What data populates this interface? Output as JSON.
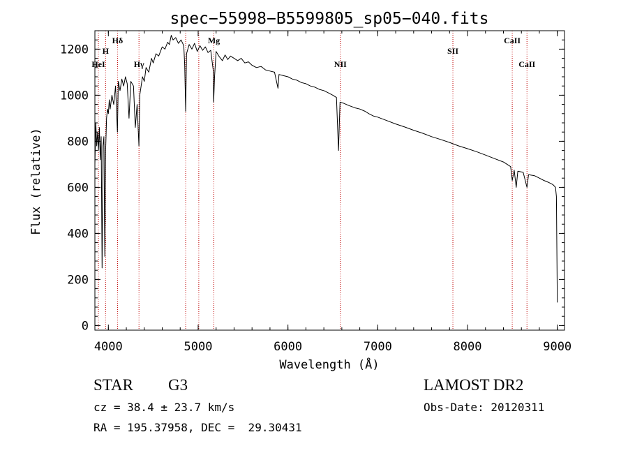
{
  "chart_data": {
    "type": "line",
    "title": "spec−55998−B5599805_sp05−040.fits",
    "xlabel": "Wavelength (Å)",
    "ylabel": "Flux (relative)",
    "xlim": [
      3850,
      9080
    ],
    "ylim": [
      -20,
      1280
    ],
    "xticks": [
      4000,
      5000,
      6000,
      7000,
      8000,
      9000
    ],
    "yticks": [
      0,
      200,
      400,
      600,
      800,
      1000,
      1200
    ],
    "series": [
      {
        "points": [
          [
            3850,
            700
          ],
          [
            3860,
            880
          ],
          [
            3870,
            780
          ],
          [
            3880,
            840
          ],
          [
            3890,
            760
          ],
          [
            3900,
            860
          ],
          [
            3910,
            720
          ],
          [
            3920,
            820
          ],
          [
            3930,
            250
          ],
          [
            3940,
            780
          ],
          [
            3950,
            820
          ],
          [
            3960,
            300
          ],
          [
            3970,
            760
          ],
          [
            3980,
            900
          ],
          [
            3990,
            940
          ],
          [
            4000,
            920
          ],
          [
            4010,
            980
          ],
          [
            4020,
            940
          ],
          [
            4040,
            1000
          ],
          [
            4060,
            960
          ],
          [
            4080,
            1040
          ],
          [
            4101,
            840
          ],
          [
            4110,
            1060
          ],
          [
            4130,
            1020
          ],
          [
            4150,
            1070
          ],
          [
            4170,
            1040
          ],
          [
            4190,
            1080
          ],
          [
            4210,
            1050
          ],
          [
            4230,
            900
          ],
          [
            4250,
            1060
          ],
          [
            4280,
            1040
          ],
          [
            4300,
            860
          ],
          [
            4320,
            960
          ],
          [
            4340,
            780
          ],
          [
            4350,
            1000
          ],
          [
            4380,
            1080
          ],
          [
            4400,
            1060
          ],
          [
            4420,
            1120
          ],
          [
            4450,
            1100
          ],
          [
            4480,
            1160
          ],
          [
            4500,
            1140
          ],
          [
            4530,
            1180
          ],
          [
            4560,
            1170
          ],
          [
            4600,
            1210
          ],
          [
            4630,
            1200
          ],
          [
            4660,
            1230
          ],
          [
            4680,
            1220
          ],
          [
            4700,
            1260
          ],
          [
            4720,
            1240
          ],
          [
            4750,
            1250
          ],
          [
            4780,
            1225
          ],
          [
            4810,
            1240
          ],
          [
            4840,
            1215
          ],
          [
            4850,
            1130
          ],
          [
            4861,
            930
          ],
          [
            4870,
            1180
          ],
          [
            4900,
            1220
          ],
          [
            4930,
            1200
          ],
          [
            4960,
            1225
          ],
          [
            4990,
            1190
          ],
          [
            5020,
            1215
          ],
          [
            5050,
            1195
          ],
          [
            5080,
            1210
          ],
          [
            5110,
            1185
          ],
          [
            5140,
            1195
          ],
          [
            5167,
            1110
          ],
          [
            5173,
            970
          ],
          [
            5183,
            1080
          ],
          [
            5200,
            1190
          ],
          [
            5230,
            1170
          ],
          [
            5270,
            1150
          ],
          [
            5300,
            1175
          ],
          [
            5330,
            1155
          ],
          [
            5360,
            1170
          ],
          [
            5400,
            1160
          ],
          [
            5440,
            1150
          ],
          [
            5480,
            1160
          ],
          [
            5520,
            1140
          ],
          [
            5560,
            1145
          ],
          [
            5600,
            1130
          ],
          [
            5650,
            1120
          ],
          [
            5700,
            1125
          ],
          [
            5750,
            1110
          ],
          [
            5800,
            1105
          ],
          [
            5850,
            1100
          ],
          [
            5889,
            1030
          ],
          [
            5900,
            1090
          ],
          [
            5950,
            1085
          ],
          [
            6000,
            1080
          ],
          [
            6050,
            1070
          ],
          [
            6100,
            1065
          ],
          [
            6150,
            1055
          ],
          [
            6200,
            1050
          ],
          [
            6250,
            1040
          ],
          [
            6300,
            1035
          ],
          [
            6350,
            1025
          ],
          [
            6400,
            1020
          ],
          [
            6450,
            1010
          ],
          [
            6500,
            1000
          ],
          [
            6540,
            990
          ],
          [
            6563,
            760
          ],
          [
            6580,
            970
          ],
          [
            6620,
            965
          ],
          [
            6680,
            955
          ],
          [
            6750,
            945
          ],
          [
            6800,
            940
          ],
          [
            6860,
            930
          ],
          [
            6900,
            920
          ],
          [
            6950,
            910
          ],
          [
            7000,
            905
          ],
          [
            7100,
            890
          ],
          [
            7200,
            875
          ],
          [
            7300,
            862
          ],
          [
            7400,
            848
          ],
          [
            7500,
            835
          ],
          [
            7600,
            820
          ],
          [
            7700,
            808
          ],
          [
            7800,
            795
          ],
          [
            7900,
            780
          ],
          [
            8000,
            768
          ],
          [
            8100,
            755
          ],
          [
            8200,
            740
          ],
          [
            8300,
            725
          ],
          [
            8400,
            710
          ],
          [
            8480,
            690
          ],
          [
            8498,
            630
          ],
          [
            8520,
            675
          ],
          [
            8542,
            600
          ],
          [
            8560,
            670
          ],
          [
            8620,
            665
          ],
          [
            8662,
            600
          ],
          [
            8680,
            655
          ],
          [
            8750,
            650
          ],
          [
            8800,
            640
          ],
          [
            8850,
            630
          ],
          [
            8900,
            622
          ],
          [
            8950,
            612
          ],
          [
            8980,
            600
          ],
          [
            8990,
            560
          ],
          [
            9000,
            100
          ]
        ]
      }
    ],
    "lines": [
      {
        "label": "HeI",
        "x": 3889
      },
      {
        "label": "H",
        "x": 3969
      },
      {
        "label": "Hδ",
        "x": 4102
      },
      {
        "label": "Hγ",
        "x": 4341
      },
      {
        "label": "",
        "x": 4861
      },
      {
        "label": "",
        "x": 5007
      },
      {
        "label": "Mg",
        "x": 5175
      },
      {
        "label": "NII",
        "x": 6584
      },
      {
        "label": "SII",
        "x": 7837
      },
      {
        "label": "CaII",
        "x": 8498
      },
      {
        "label": "CaII",
        "x": 8662
      }
    ]
  },
  "info": {
    "object_class": "STAR",
    "subclass": "G3",
    "survey": "LAMOST DR2",
    "cz": "cz = 38.4 ± 23.7 km/s",
    "obs_date": "Obs-Date: 20120311",
    "coords": "RA = 195.37958, DEC =  29.30431"
  },
  "colors": {
    "axis": "#000000",
    "spectrum": "#000000",
    "line_marker": "#c00000"
  }
}
